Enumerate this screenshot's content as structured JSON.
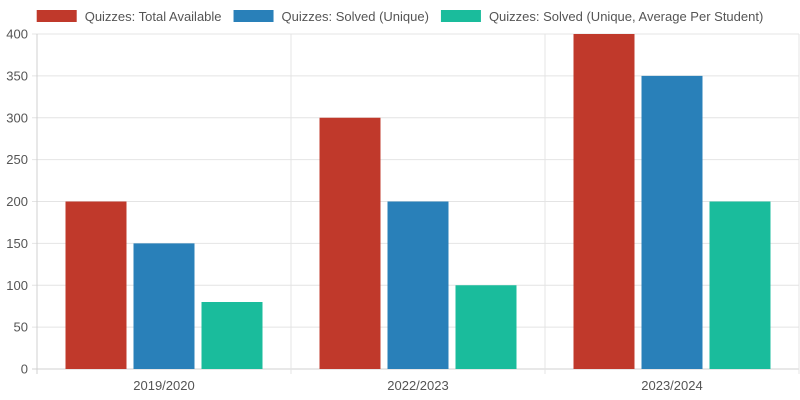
{
  "chart_data": {
    "type": "bar",
    "categories": [
      "2019/2020",
      "2022/2023",
      "2023/2024"
    ],
    "series": [
      {
        "name": "Quizzes: Total Available",
        "values": [
          200,
          300,
          400
        ],
        "color": "#c0392b"
      },
      {
        "name": "Quizzes: Solved (Unique)",
        "values": [
          150,
          200,
          350
        ],
        "color": "#2980b9"
      },
      {
        "name": "Quizzes: Solved (Unique, Average Per Student)",
        "values": [
          80,
          100,
          200
        ],
        "color": "#1abc9c"
      }
    ],
    "yticks": [
      "0",
      "50",
      "100",
      "150",
      "200",
      "250",
      "300",
      "350",
      "400"
    ],
    "ylim": [
      0,
      400
    ],
    "title": "",
    "xlabel": "",
    "ylabel": "",
    "grid": true,
    "legend": "top"
  }
}
